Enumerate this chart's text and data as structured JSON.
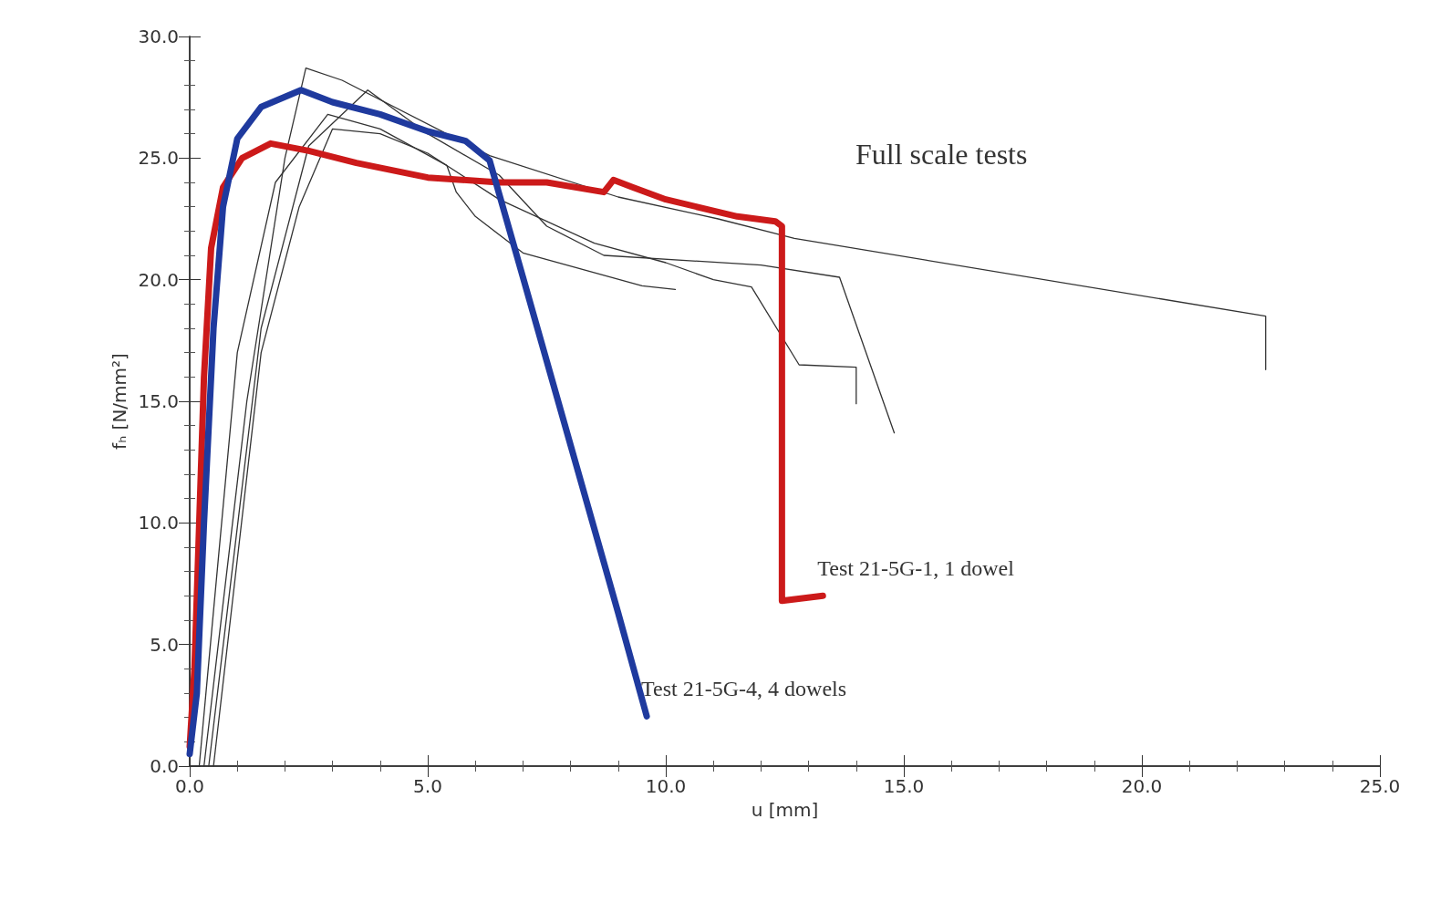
{
  "chart_data": {
    "type": "line",
    "xlabel": "u [mm]",
    "ylabel": "fₕ [N/mm²]",
    "xlim": [
      0,
      25
    ],
    "ylim": [
      0,
      30
    ],
    "xticks": [
      {
        "value": 0,
        "label": "0.0"
      },
      {
        "value": 5,
        "label": "5.0"
      },
      {
        "value": 10,
        "label": "10.0"
      },
      {
        "value": 15,
        "label": "15.0"
      },
      {
        "value": 20,
        "label": "20.0"
      },
      {
        "value": 25,
        "label": "25.0"
      }
    ],
    "yticks": [
      {
        "value": 0,
        "label": "0.0"
      },
      {
        "value": 5,
        "label": "5.0"
      },
      {
        "value": 10,
        "label": "10.0"
      },
      {
        "value": 15,
        "label": "15.0"
      },
      {
        "value": 20,
        "label": "20.0"
      },
      {
        "value": 25,
        "label": "25.0"
      },
      {
        "value": 30,
        "label": "30.0"
      }
    ],
    "grid": false,
    "legend": false,
    "marker": "none",
    "line_style": "solid",
    "annotations": [
      "Full scale tests"
    ],
    "series": [
      {
        "color": "#333333",
        "x": [
          0.3,
          1.2,
          2.0,
          2.44,
          3.2,
          6.3,
          9.0,
          11.1,
          12.7,
          22.6,
          22.6
        ],
        "values": [
          0,
          15,
          25,
          28.7,
          28.2,
          25.1,
          23.4,
          22.5,
          21.7,
          18.5,
          16.3
        ]
      },
      {
        "color": "#333333",
        "x": [
          0.4,
          1.5,
          2.5,
          3.74,
          5.0,
          6.5,
          7.5,
          8.7,
          12.0,
          13.65,
          14.8
        ],
        "values": [
          0,
          18,
          25.5,
          27.8,
          26.0,
          24.3,
          22.2,
          21.0,
          20.6,
          20.1,
          13.7
        ]
      },
      {
        "color": "#333333",
        "x": [
          0.5,
          1.5,
          2.3,
          3.0,
          4.0,
          5.0,
          6.5,
          8.5,
          10.0,
          11.0,
          11.8,
          12.8,
          14.0,
          14.0
        ],
        "values": [
          0,
          17,
          23,
          26.2,
          26.0,
          25.2,
          23.3,
          21.5,
          20.7,
          20.0,
          19.7,
          16.5,
          16.4,
          14.9
        ]
      },
      {
        "color": "#333333",
        "x": [
          0.2,
          1.0,
          1.8,
          2.9,
          4.0,
          5.4,
          5.6,
          6.0,
          7.0,
          9.5,
          10.2
        ],
        "values": [
          0,
          17,
          24,
          26.8,
          26.2,
          24.7,
          23.6,
          22.6,
          21.1,
          19.75,
          19.6
        ]
      },
      {
        "name": "Test 21-5G-1, 1 dowel",
        "color": "#cc1a1a",
        "x": [
          0,
          0.1,
          0.2,
          0.3,
          0.45,
          0.7,
          1.1,
          1.7,
          2.5,
          3.5,
          5.0,
          6.5,
          7.5,
          8.7,
          8.9,
          9.3,
          10.0,
          11.5,
          12.3,
          12.44,
          12.44,
          13.3
        ],
        "values": [
          0.8,
          4,
          10,
          16,
          21.3,
          23.8,
          25.0,
          25.6,
          25.3,
          24.8,
          24.2,
          24.0,
          24.0,
          23.6,
          24.1,
          23.8,
          23.3,
          22.6,
          22.4,
          22.2,
          6.8,
          7.0
        ]
      },
      {
        "name": "Test 21-5G-4, 4 dowels",
        "color": "#1f3a9e",
        "x": [
          0,
          0.15,
          0.3,
          0.5,
          0.7,
          1.0,
          1.5,
          2.34,
          3.0,
          4.0,
          5.0,
          5.8,
          6.3,
          7.0,
          8.0,
          9.0,
          9.6
        ],
        "values": [
          0.5,
          3,
          10,
          18,
          23,
          25.8,
          27.1,
          27.8,
          27.3,
          26.8,
          26.1,
          25.7,
          24.9,
          20.1,
          13.2,
          6.3,
          2.05
        ]
      }
    ]
  }
}
